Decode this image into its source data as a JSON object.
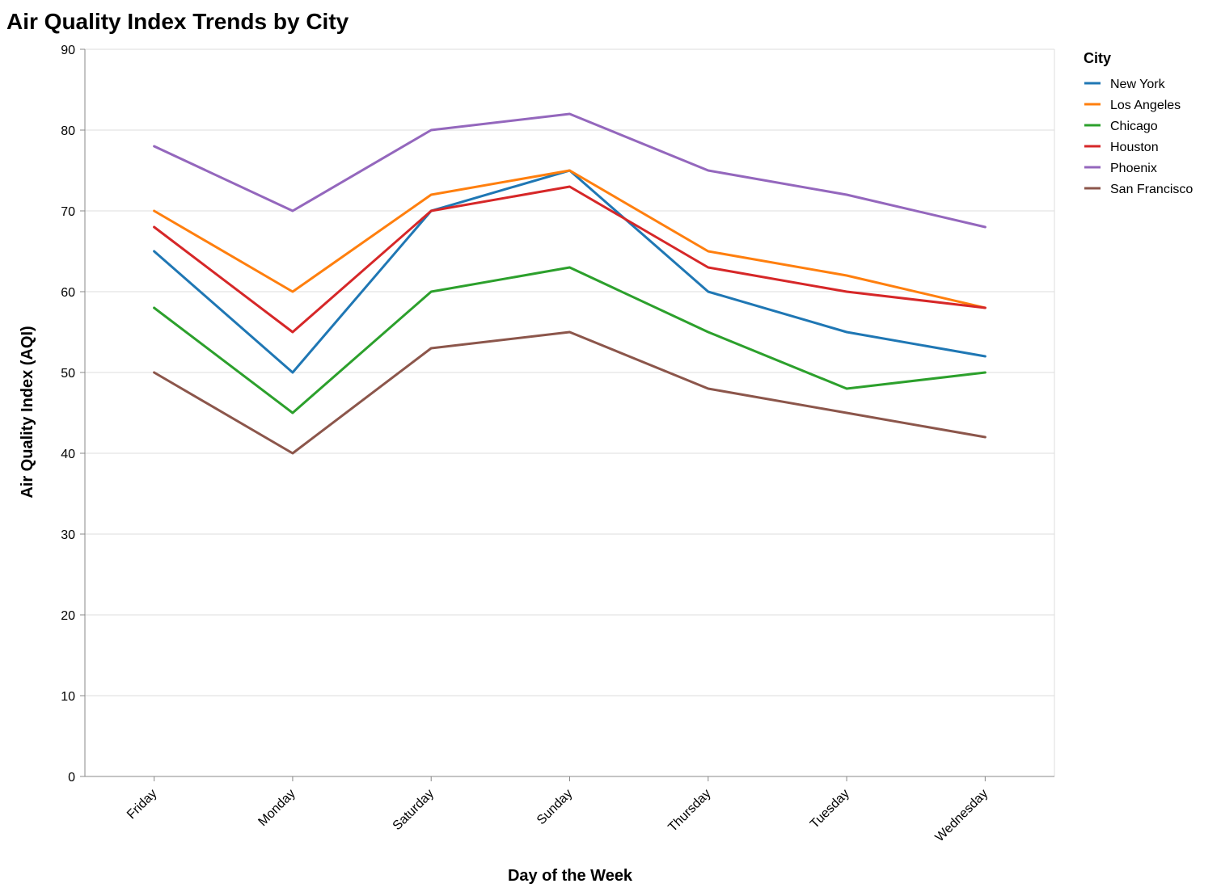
{
  "chart_data": {
    "type": "line",
    "title": "Air Quality Index Trends by City",
    "xlabel": "Day of the Week",
    "ylabel": "Air Quality Index (AQI)",
    "categories": [
      "Friday",
      "Monday",
      "Saturday",
      "Sunday",
      "Thursday",
      "Tuesday",
      "Wednesday"
    ],
    "ylim": [
      0,
      90
    ],
    "yticks": [
      0,
      10,
      20,
      30,
      40,
      50,
      60,
      70,
      80,
      90
    ],
    "grid": true,
    "legend": {
      "title": "City",
      "position": "top-right"
    },
    "series": [
      {
        "name": "New York",
        "color": "#1f77b4",
        "values": [
          65,
          50,
          70,
          75,
          60,
          55,
          52
        ]
      },
      {
        "name": "Los Angeles",
        "color": "#ff7f0e",
        "values": [
          70,
          60,
          72,
          75,
          65,
          62,
          58
        ]
      },
      {
        "name": "Chicago",
        "color": "#2ca02c",
        "values": [
          58,
          45,
          60,
          63,
          55,
          48,
          50
        ]
      },
      {
        "name": "Houston",
        "color": "#d62728",
        "values": [
          68,
          55,
          70,
          73,
          63,
          60,
          58
        ]
      },
      {
        "name": "Phoenix",
        "color": "#9467bd",
        "values": [
          78,
          70,
          80,
          82,
          75,
          72,
          68
        ]
      },
      {
        "name": "San Francisco",
        "color": "#8c564b",
        "values": [
          50,
          40,
          53,
          55,
          48,
          45,
          42
        ]
      }
    ]
  }
}
